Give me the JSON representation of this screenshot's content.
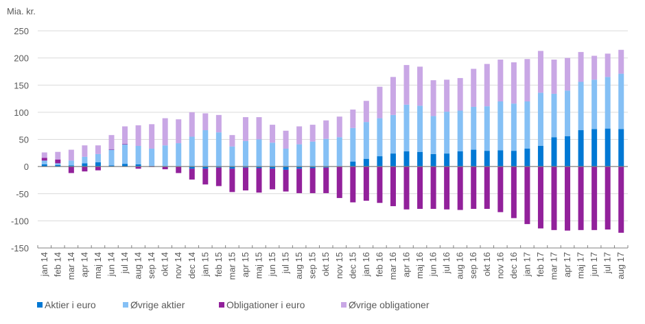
{
  "chart_data": {
    "type": "bar",
    "stacked": true,
    "title": "",
    "ylabel": "Mia. kr.",
    "xlabel": "",
    "ylim": [
      -150,
      250
    ],
    "yticks": [
      250,
      200,
      150,
      100,
      50,
      0,
      -50,
      -100,
      -150
    ],
    "grid": true,
    "legend_position": "bottom",
    "categories": [
      "jan 14",
      "feb 14",
      "mar 14",
      "apr 14",
      "maj 14",
      "jun 14",
      "jul 14",
      "aug 14",
      "sep 14",
      "okt 14",
      "nov 14",
      "dec 14",
      "jan 15",
      "feb 15",
      "mar 15",
      "apr 15",
      "maj 15",
      "jun 15",
      "jul 15",
      "aug 15",
      "sep 15",
      "okt 15",
      "nov 15",
      "dec 15",
      "jan 16",
      "feb 16",
      "mar 16",
      "apr 16",
      "maj 16",
      "jun 16",
      "jul 16",
      "aug 16",
      "sep 16",
      "okt 16",
      "nov 16",
      "dec 16",
      "jan 17",
      "feb 17",
      "mar 17",
      "apr 17",
      "maj 17",
      "jun 17",
      "jul 17",
      "aug 17"
    ],
    "series": [
      {
        "name": "Aktier i euro",
        "color": "#0078D4",
        "values": [
          4,
          3,
          2,
          6,
          8,
          2,
          5,
          4,
          0,
          0,
          0,
          -4,
          -4,
          -2,
          -4,
          -2,
          -3,
          -4,
          -6,
          -4,
          -3,
          -2,
          1,
          9,
          14,
          19,
          24,
          28,
          27,
          23,
          24,
          28,
          31,
          29,
          30,
          29,
          33,
          38,
          54,
          56,
          67,
          69,
          70,
          69
        ]
      },
      {
        "name": "Øvrige aktier",
        "color": "#85C0F5",
        "values": [
          7,
          3,
          9,
          12,
          15,
          29,
          36,
          34,
          33,
          39,
          43,
          55,
          67,
          63,
          37,
          47,
          50,
          44,
          33,
          41,
          46,
          51,
          53,
          62,
          68,
          70,
          71,
          86,
          85,
          70,
          77,
          75,
          79,
          82,
          90,
          87,
          87,
          98,
          80,
          84,
          89,
          91,
          95,
          102
        ]
      },
      {
        "name": "Obligationer i euro",
        "color": "#92219B",
        "values": [
          5,
          7,
          -12,
          -9,
          -7,
          1,
          1,
          -4,
          -1,
          -5,
          -12,
          -20,
          -29,
          -34,
          -43,
          -42,
          -45,
          -38,
          -40,
          -45,
          -46,
          -47,
          -58,
          -66,
          -63,
          -67,
          -73,
          -79,
          -78,
          -78,
          -79,
          -80,
          -78,
          -78,
          -84,
          -95,
          -106,
          -114,
          -117,
          -118,
          -117,
          -117,
          -116,
          -122
        ]
      },
      {
        "name": "Øvrige obligationer",
        "color": "#C9A7E5",
        "values": [
          10,
          14,
          20,
          21,
          16,
          26,
          32,
          38,
          45,
          50,
          44,
          45,
          31,
          32,
          21,
          44,
          41,
          33,
          33,
          33,
          31,
          34,
          38,
          34,
          39,
          58,
          70,
          73,
          72,
          66,
          59,
          60,
          70,
          78,
          77,
          76,
          78,
          77,
          63,
          60,
          55,
          44,
          43,
          44
        ]
      }
    ]
  },
  "legend": {
    "items": [
      {
        "label": "Aktier i euro",
        "color": "#0078D4"
      },
      {
        "label": "Øvrige aktier",
        "color": "#85C0F5"
      },
      {
        "label": "Obligationer i euro",
        "color": "#92219B"
      },
      {
        "label": "Øvrige obligationer",
        "color": "#C9A7E5"
      }
    ]
  },
  "unit_label": "Mia. kr."
}
